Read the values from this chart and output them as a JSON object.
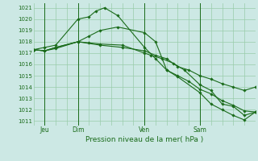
{
  "background_color": "#cce8e4",
  "grid_color": "#99ccaa",
  "line_color": "#1a6b1a",
  "marker_color": "#1a6b1a",
  "xlabel": "Pression niveau de la mer( hPa )",
  "ylabel_ticks": [
    1011,
    1012,
    1013,
    1014,
    1015,
    1016,
    1017,
    1018,
    1019,
    1020,
    1021
  ],
  "ylim": [
    1010.6,
    1021.4
  ],
  "xlim": [
    0,
    10.0
  ],
  "xtick_positions": [
    0.5,
    2.0,
    5.0,
    7.5
  ],
  "xtick_labels": [
    "Jeu",
    "Dim",
    "Ven",
    "Sam"
  ],
  "vlines": [
    0.5,
    2.0,
    5.0,
    7.5
  ],
  "series": [
    {
      "x": [
        0.0,
        0.5,
        1.0,
        2.0,
        2.5,
        2.8,
        3.2,
        3.8,
        5.0,
        5.5,
        6.0,
        6.5,
        7.5,
        8.0,
        8.5,
        9.0,
        9.5,
        10.0
      ],
      "y": [
        1017.3,
        1017.5,
        1017.7,
        1020.0,
        1020.2,
        1020.7,
        1021.0,
        1020.3,
        1017.5,
        1016.5,
        1015.5,
        1014.9,
        1013.5,
        1012.5,
        1012.0,
        1011.5,
        1011.1,
        1011.8
      ]
    },
    {
      "x": [
        0.0,
        0.5,
        1.0,
        2.0,
        2.5,
        3.0,
        3.8,
        5.0,
        5.5,
        6.0,
        6.5,
        7.0,
        7.5,
        8.0,
        8.5,
        9.0,
        9.5,
        10.0
      ],
      "y": [
        1017.3,
        1017.2,
        1017.4,
        1018.0,
        1018.5,
        1019.0,
        1019.3,
        1018.8,
        1018.0,
        1015.5,
        1015.0,
        1014.5,
        1013.8,
        1013.4,
        1012.8,
        1012.4,
        1011.9,
        1011.8
      ]
    },
    {
      "x": [
        0.0,
        0.5,
        1.0,
        2.0,
        2.5,
        3.0,
        4.0,
        5.0,
        5.3,
        5.8,
        6.3,
        6.8,
        7.5,
        8.0,
        8.5,
        9.0,
        9.5,
        10.0
      ],
      "y": [
        1017.3,
        1017.2,
        1017.5,
        1018.0,
        1017.9,
        1017.8,
        1017.7,
        1017.0,
        1016.8,
        1016.5,
        1016.1,
        1015.5,
        1014.2,
        1013.7,
        1012.5,
        1012.3,
        1011.5,
        1011.8
      ]
    },
    {
      "x": [
        0.0,
        0.5,
        1.0,
        2.0,
        3.0,
        4.0,
        5.0,
        5.5,
        6.0,
        6.5,
        7.0,
        7.5,
        8.0,
        8.5,
        9.0,
        9.5,
        10.0
      ],
      "y": [
        1017.3,
        1017.2,
        1017.5,
        1018.0,
        1017.7,
        1017.5,
        1017.2,
        1016.8,
        1016.5,
        1015.8,
        1015.5,
        1015.0,
        1014.7,
        1014.3,
        1014.0,
        1013.7,
        1014.0
      ]
    }
  ]
}
